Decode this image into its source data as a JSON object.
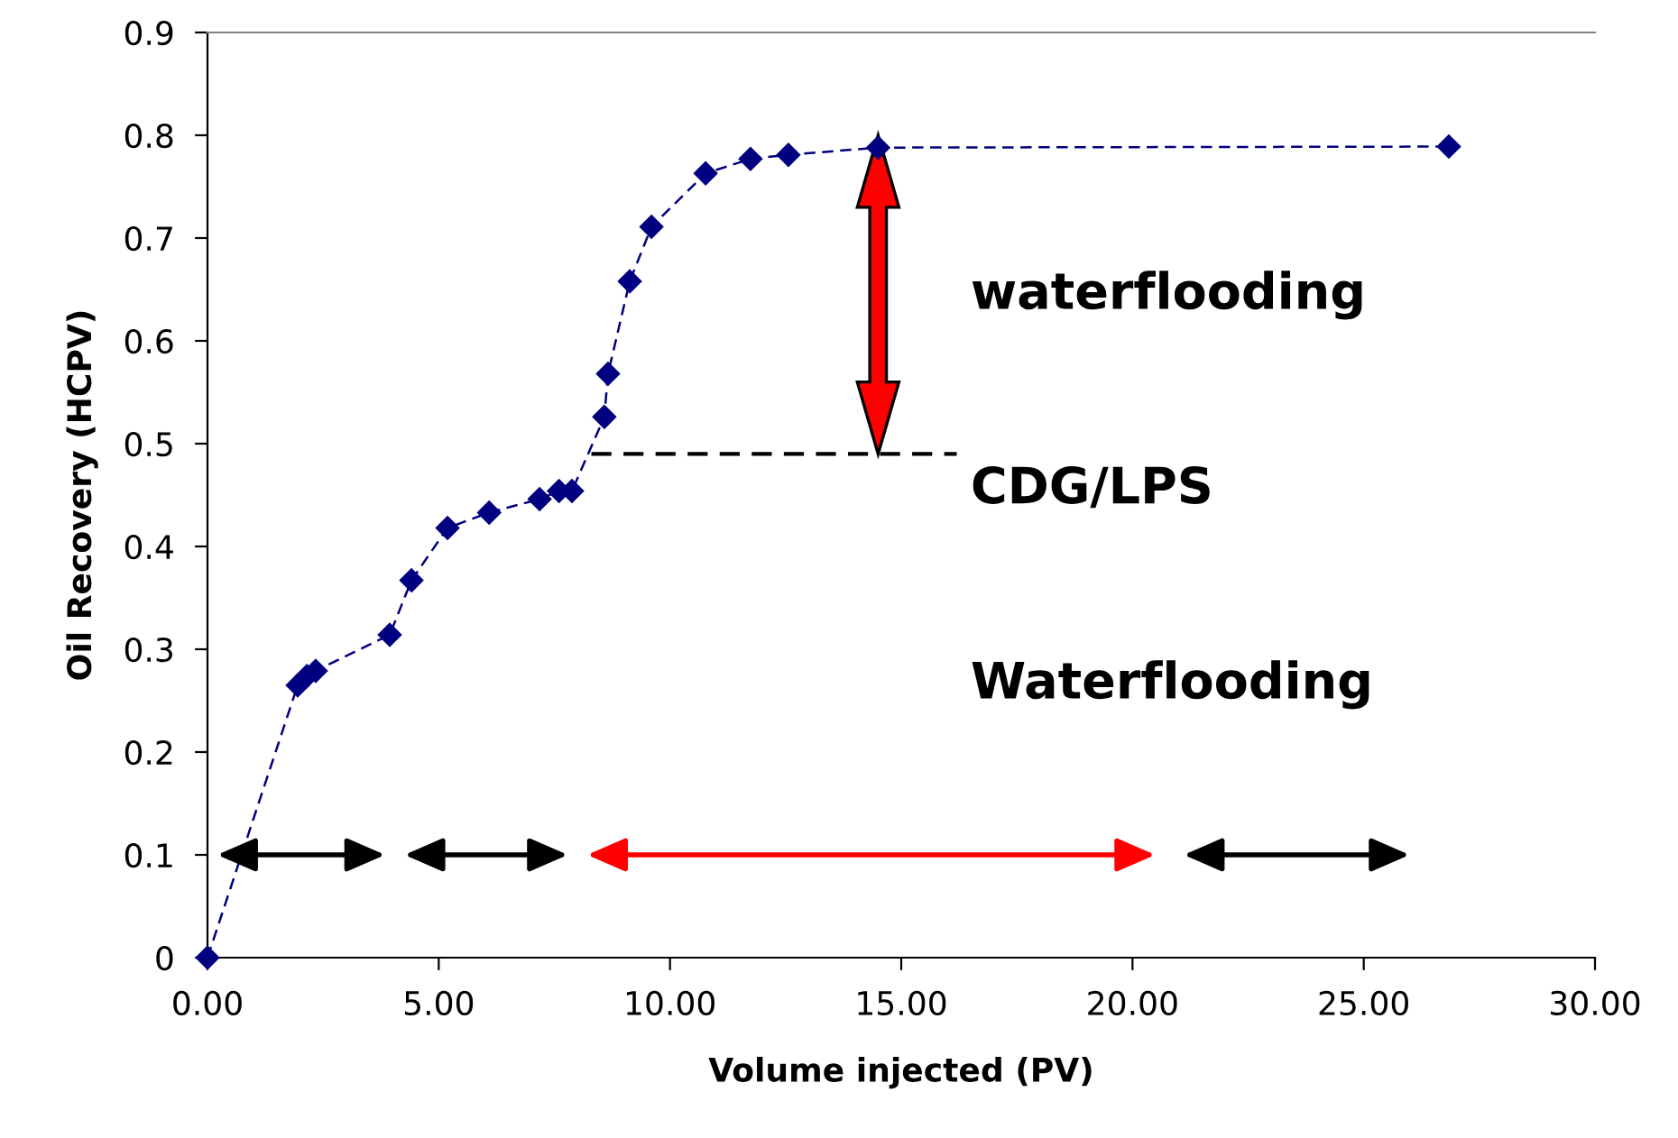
{
  "chart_data": {
    "type": "line",
    "xlabel": "Volume injected (PV)",
    "ylabel": "Oil Recovery (HCPV)",
    "series": [
      {
        "color": "#000080",
        "marker": "diamond",
        "line_style": "dashed",
        "x": [
          0,
          1.95,
          2.15,
          2.34,
          3.94,
          4.41,
          5.19,
          6.09,
          7.18,
          7.6,
          7.88,
          8.58,
          8.66,
          9.13,
          9.6,
          10.77,
          11.74,
          12.56,
          14.5,
          26.84
        ],
        "values": [
          0,
          0.265,
          0.274,
          0.279,
          0.314,
          0.367,
          0.418,
          0.433,
          0.446,
          0.454,
          0.454,
          0.526,
          0.568,
          0.658,
          0.711,
          0.763,
          0.777,
          0.781,
          0.788,
          0.789
        ]
      },
      {
        "color": "#000000",
        "marker": "none",
        "line_style": "dashed",
        "x": [
          8.3,
          16.2
        ],
        "values": [
          0.49,
          0.49
        ]
      }
    ],
    "annotations": [
      "waterflooding",
      "CDG/LPS",
      "Waterflooding"
    ],
    "xlim": [
      0,
      30
    ],
    "xticks": [
      {
        "value": 0,
        "label": "0.00"
      },
      {
        "value": 5,
        "label": "5.00"
      },
      {
        "value": 10,
        "label": "10.00"
      },
      {
        "value": 15,
        "label": "15.00"
      },
      {
        "value": 20,
        "label": "20.00"
      },
      {
        "value": 25,
        "label": "25.00"
      },
      {
        "value": 30,
        "label": "30.00"
      }
    ],
    "ylim": [
      0,
      0.9
    ],
    "yticks": [
      0,
      0.1,
      0.2,
      0.3,
      0.4,
      0.5,
      0.6,
      0.7,
      0.8,
      0.9
    ],
    "grid": false,
    "legend": false
  }
}
